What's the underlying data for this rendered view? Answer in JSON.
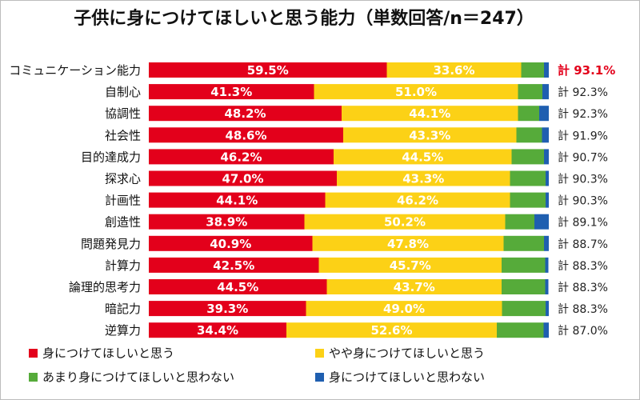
{
  "chart_data": {
    "type": "bar",
    "orientation": "horizontal",
    "stacked": true,
    "percent_stacked": true,
    "title": "子供に身につけてほしいと思う能力（単数回答/n＝247）",
    "xlim": [
      0,
      100
    ],
    "grid": false,
    "legend_position": "bottom",
    "categories": [
      "コミュニケーション能力",
      "自制心",
      "協調性",
      "社会性",
      "目的達成力",
      "探求心",
      "計画性",
      "創造性",
      "問題発見力",
      "計算力",
      "論理的思考力",
      "暗記力",
      "逆算力"
    ],
    "series": [
      {
        "name": "身につけてほしいと思う",
        "color": "#e3001b",
        "values": [
          59.5,
          41.3,
          48.2,
          48.6,
          46.2,
          47.0,
          44.1,
          38.9,
          40.9,
          42.5,
          44.5,
          39.3,
          34.4
        ],
        "labels": [
          "59.5%",
          "41.3%",
          "48.2%",
          "48.6%",
          "46.2%",
          "47.0%",
          "44.1%",
          "38.9%",
          "40.9%",
          "42.5%",
          "44.5%",
          "39.3%",
          "34.4%"
        ]
      },
      {
        "name": "やや身につけてほしいと思う",
        "color": "#fcd116",
        "values": [
          33.6,
          51.0,
          44.1,
          43.3,
          44.5,
          43.3,
          46.2,
          50.2,
          47.8,
          45.7,
          43.7,
          49.0,
          52.6
        ],
        "labels": [
          "33.6%",
          "51.0%",
          "44.1%",
          "43.3%",
          "44.5%",
          "43.3%",
          "46.2%",
          "50.2%",
          "47.8%",
          "45.7%",
          "43.7%",
          "49.0%",
          "52.6%"
        ]
      },
      {
        "name": "あまり身につけてほしいと思わない",
        "color": "#56ab3a",
        "values": [
          5.7,
          6.1,
          5.3,
          6.4,
          8.1,
          8.9,
          8.9,
          7.3,
          10.1,
          10.9,
          10.9,
          10.9,
          11.7
        ]
      },
      {
        "name": "身につけてほしいと思わない",
        "color": "#1f5fb0",
        "values": [
          1.2,
          1.6,
          2.4,
          1.7,
          1.2,
          0.8,
          0.8,
          3.6,
          1.2,
          0.8,
          0.8,
          0.8,
          1.3
        ]
      }
    ],
    "totals": [
      "計 93.1%",
      "計 92.3%",
      "計 92.3%",
      "計 91.9%",
      "計 90.7%",
      "計 90.3%",
      "計 90.3%",
      "計 89.1%",
      "計 88.7%",
      "計 88.3%",
      "計 88.3%",
      "計 88.3%",
      "計 87.0%"
    ],
    "totals_highlight_index": 0,
    "colors": {
      "highlight_total": "#e3001b"
    }
  }
}
